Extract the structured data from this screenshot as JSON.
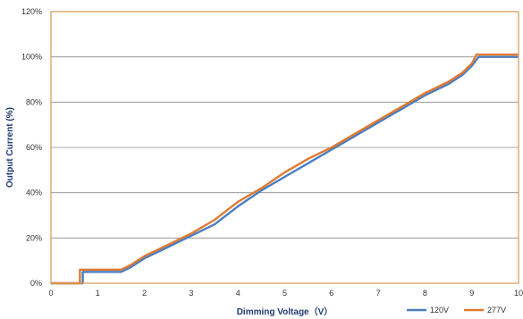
{
  "chart_data": {
    "type": "line",
    "title": "",
    "xlabel": "Dimming Voltage（V）",
    "ylabel": "Output Current (%)",
    "xlim": [
      0,
      10
    ],
    "ylim": [
      0,
      120
    ],
    "x_ticks": [
      "0",
      "1",
      "2",
      "3",
      "4",
      "5",
      "6",
      "7",
      "8",
      "9",
      "10"
    ],
    "y_ticks": [
      "0%",
      "20%",
      "40%",
      "60%",
      "80%",
      "100%",
      "120%"
    ],
    "grid": "horizontal",
    "legend_position": "bottom-right",
    "series": [
      {
        "name": "120V",
        "color": "#4a7ec2",
        "points": [
          [
            0,
            0
          ],
          [
            0.68,
            0
          ],
          [
            0.68,
            5
          ],
          [
            1.0,
            5
          ],
          [
            1.5,
            5
          ],
          [
            1.7,
            7
          ],
          [
            2.0,
            11
          ],
          [
            2.5,
            16
          ],
          [
            3.0,
            21
          ],
          [
            3.5,
            26
          ],
          [
            4.0,
            34
          ],
          [
            4.5,
            41
          ],
          [
            5.0,
            47
          ],
          [
            5.5,
            53
          ],
          [
            6.0,
            59
          ],
          [
            6.5,
            65
          ],
          [
            7.0,
            71
          ],
          [
            7.5,
            77
          ],
          [
            8.0,
            83
          ],
          [
            8.5,
            88
          ],
          [
            8.8,
            92
          ],
          [
            9.0,
            96
          ],
          [
            9.15,
            100
          ],
          [
            10.0,
            100
          ]
        ]
      },
      {
        "name": "277V",
        "color": "#e07a30",
        "points": [
          [
            0,
            0
          ],
          [
            0.62,
            0
          ],
          [
            0.62,
            6
          ],
          [
            1.0,
            6
          ],
          [
            1.5,
            6
          ],
          [
            1.7,
            8
          ],
          [
            2.0,
            12
          ],
          [
            2.5,
            17
          ],
          [
            3.0,
            22
          ],
          [
            3.5,
            28
          ],
          [
            4.0,
            36
          ],
          [
            4.5,
            42
          ],
          [
            5.0,
            49
          ],
          [
            5.5,
            55
          ],
          [
            6.0,
            60
          ],
          [
            6.5,
            66
          ],
          [
            7.0,
            72
          ],
          [
            7.5,
            78
          ],
          [
            8.0,
            84
          ],
          [
            8.5,
            89
          ],
          [
            8.8,
            93
          ],
          [
            9.0,
            97
          ],
          [
            9.1,
            101
          ],
          [
            10.0,
            101
          ]
        ]
      }
    ]
  }
}
